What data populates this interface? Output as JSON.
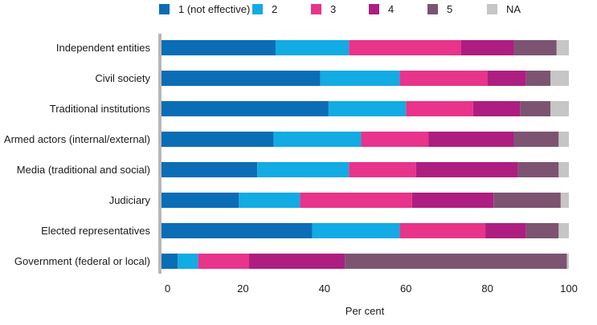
{
  "chart_data": {
    "type": "bar",
    "orientation": "horizontal",
    "stacked": true,
    "categories": [
      "Independent entities",
      "Civil society",
      "Traditional institutions",
      "Armed actors (internal/external)",
      "Media (traditional and social)",
      "Judiciary",
      "Elected representatives",
      "Government (federal or local)"
    ],
    "series": [
      {
        "name": "1 (not effective)",
        "color": "#0b6db5",
        "values": [
          28,
          39,
          41,
          27.5,
          23.5,
          19,
          37,
          4
        ]
      },
      {
        "name": "2",
        "color": "#12abe3",
        "values": [
          18,
          19.5,
          19,
          21.5,
          22.5,
          15,
          21.5,
          5
        ]
      },
      {
        "name": "3",
        "color": "#e8348a",
        "values": [
          27.5,
          21.5,
          16.5,
          16.5,
          16.5,
          27.5,
          21,
          12.5
        ]
      },
      {
        "name": "4",
        "color": "#ad1e80",
        "values": [
          13,
          9.5,
          11.5,
          21,
          25,
          20,
          10,
          23.5
        ]
      },
      {
        "name": "5",
        "color": "#7c5471",
        "values": [
          10.5,
          6,
          7.5,
          11,
          10,
          16.5,
          8,
          54.5
        ]
      },
      {
        "name": "NA",
        "color": "#c6c6c6",
        "values": [
          3,
          4.5,
          4.5,
          2.5,
          2.5,
          2,
          2.5,
          0.5
        ]
      }
    ],
    "xlabel": "Per cent",
    "xlim": [
      0,
      100
    ],
    "xticks": [
      "0",
      "20",
      "40",
      "60",
      "80",
      "100"
    ],
    "legend_position": "top"
  }
}
